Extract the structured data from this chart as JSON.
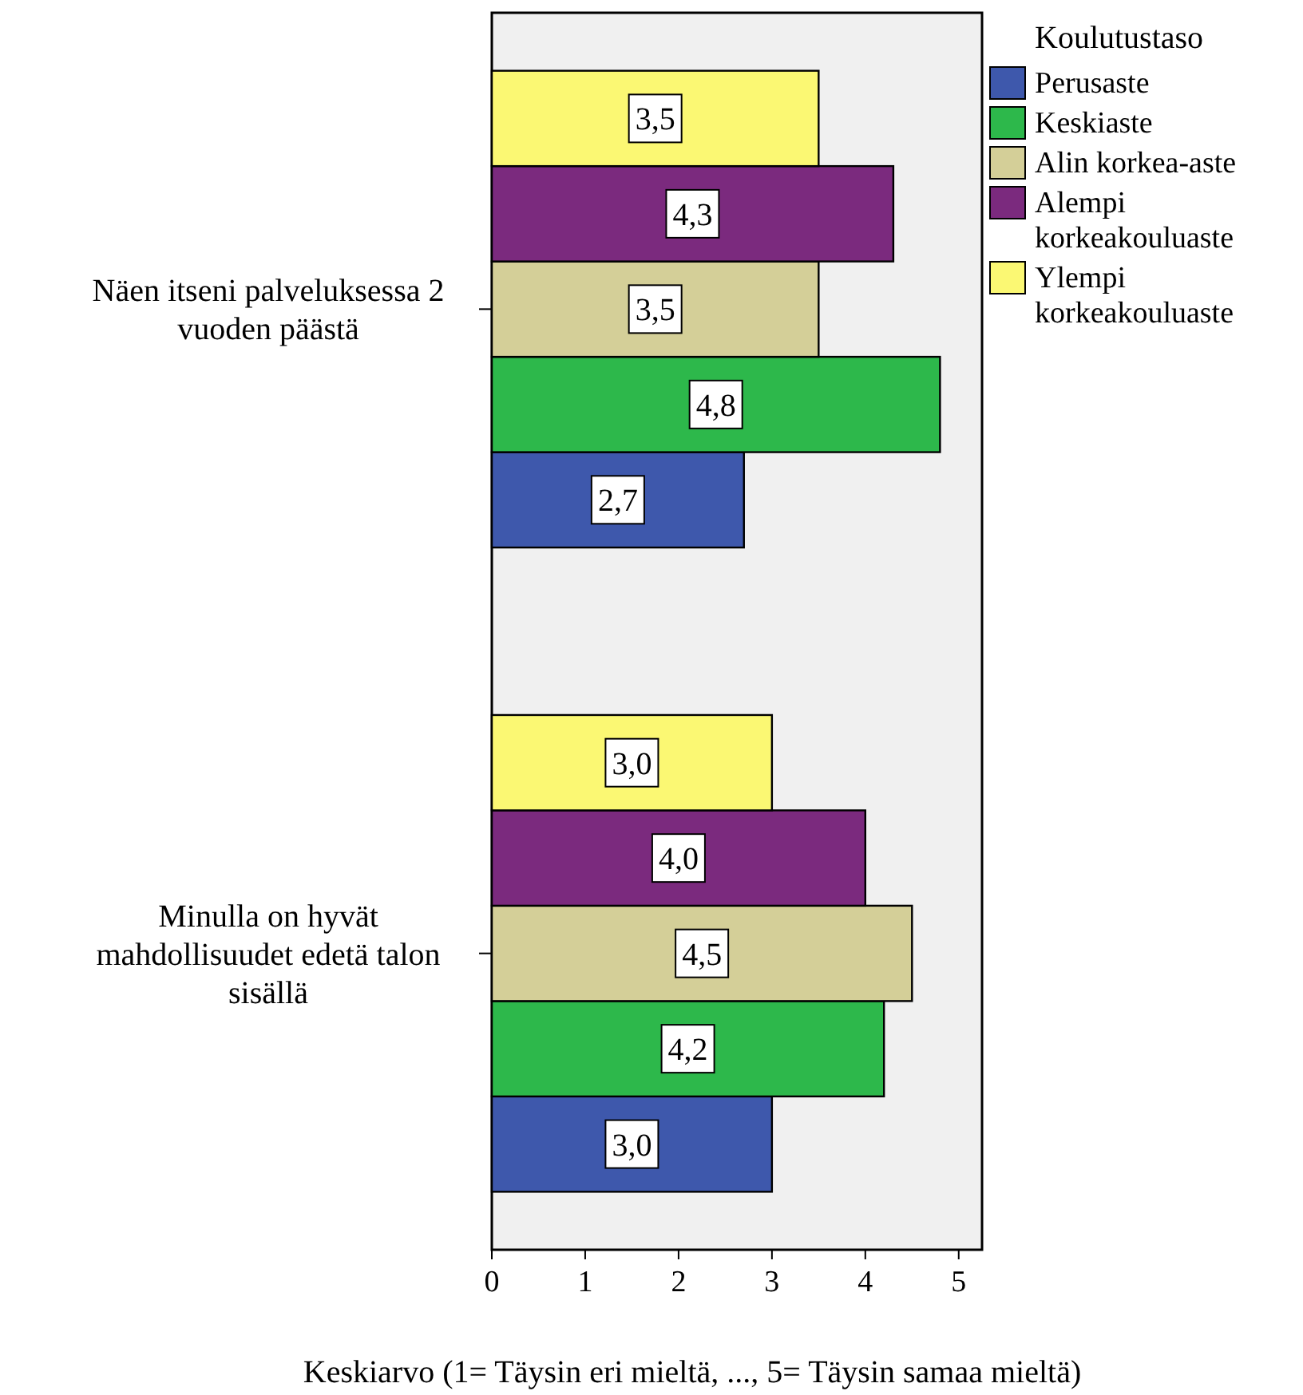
{
  "chart_data": {
    "type": "bar",
    "orientation": "horizontal",
    "categories": [
      "Näen itseni palveluksessa 2 vuoden päästä",
      "Minulla on hyvät mahdollisuudet edetä talon sisällä"
    ],
    "xlabel": "Keskiarvo (1= Täysin eri mieltä, ..., 5= Täysin samaa mieltä)",
    "legend_title": "Koulutustaso",
    "legend": "top right",
    "xlim": [
      0,
      5.25
    ],
    "xticks": [
      0,
      1,
      2,
      3,
      4,
      5
    ],
    "grid": false,
    "series": [
      {
        "name": "Perusaste",
        "color": "#3e58ac",
        "values": [
          2.7,
          3.0
        ],
        "value_labels": [
          "2,7",
          "3,0"
        ]
      },
      {
        "name": "Keskiaste",
        "color": "#2db84b",
        "values": [
          4.8,
          4.2
        ],
        "value_labels": [
          "4,8",
          "4,2"
        ]
      },
      {
        "name": "Alin korkea-aste",
        "color": "#d4cf98",
        "values": [
          3.5,
          4.5
        ],
        "value_labels": [
          "3,5",
          "4,5"
        ]
      },
      {
        "name": "Alempi korkeakouluaste",
        "color": "#7b2a7e",
        "values": [
          4.3,
          4.0
        ],
        "value_labels": [
          "4,3",
          "4,0"
        ]
      },
      {
        "name": "Ylempi korkeakouluaste",
        "color": "#fbf873",
        "values": [
          3.5,
          3.0
        ],
        "value_labels": [
          "3,5",
          "3,0"
        ]
      }
    ]
  }
}
